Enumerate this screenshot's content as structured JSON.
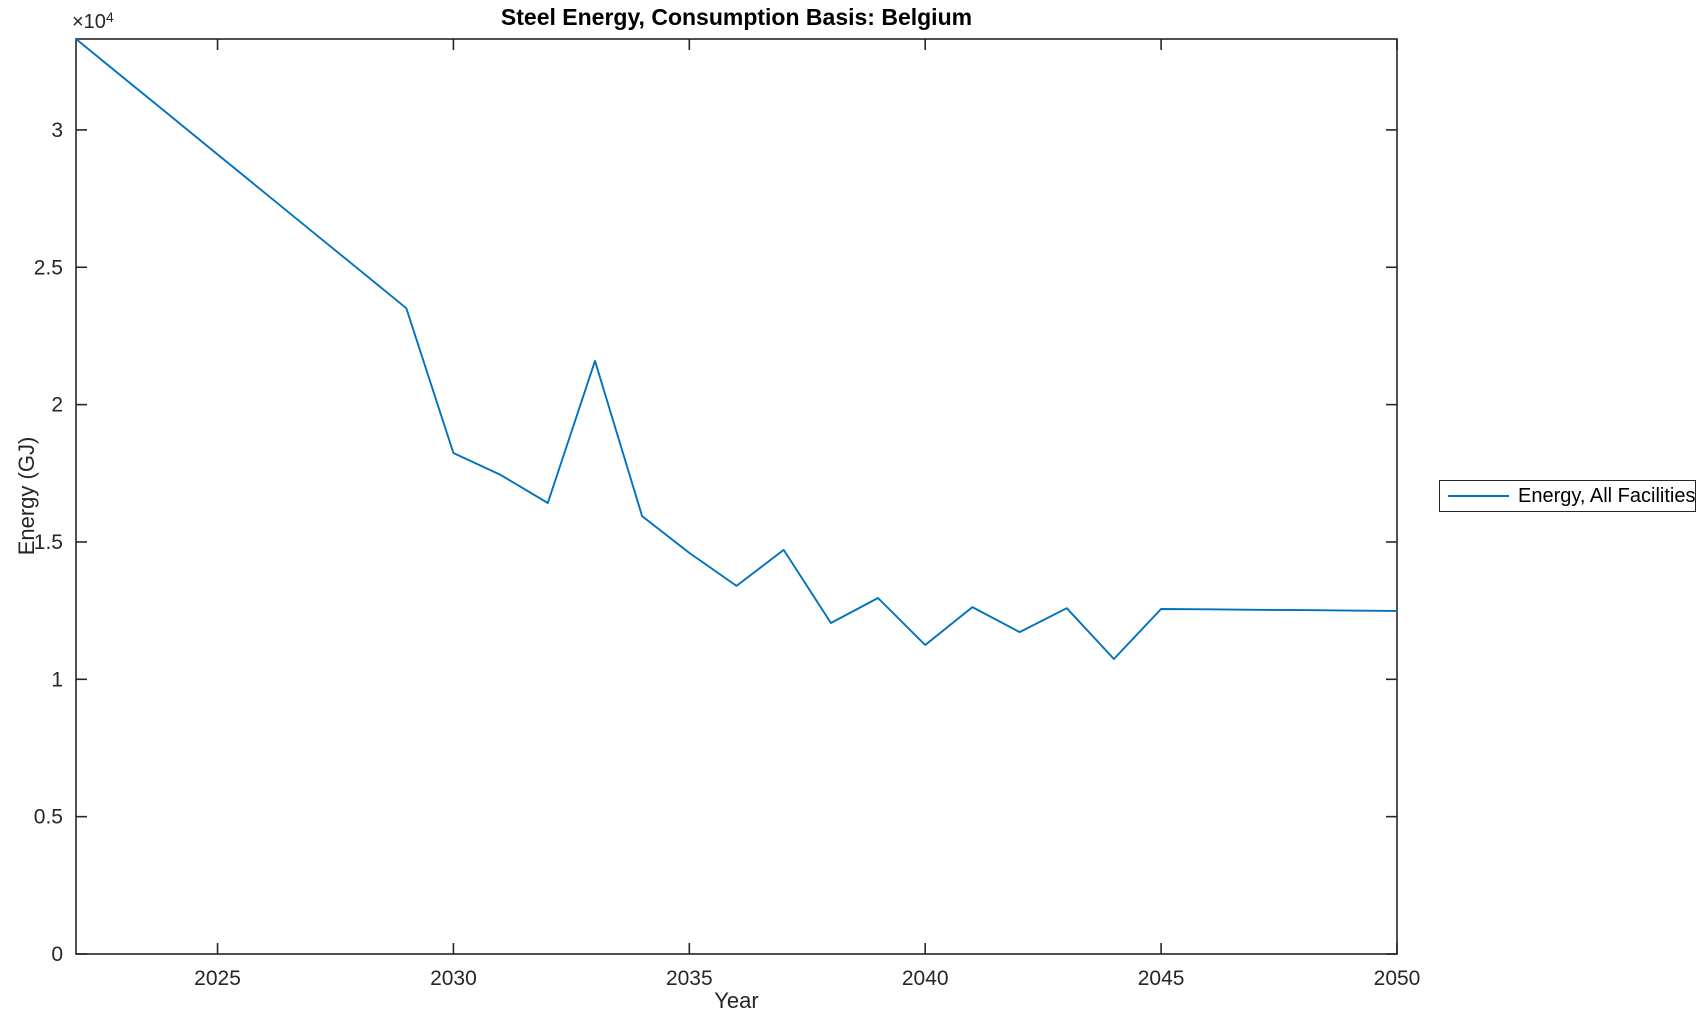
{
  "chart_data": {
    "type": "line",
    "title": "Steel Energy, Consumption Basis: Belgium",
    "xlabel": "Year",
    "ylabel": "Energy (GJ)",
    "y_axis_multiplier": {
      "base": "×10",
      "exponent": "4"
    },
    "xlim": [
      2022,
      2050
    ],
    "ylim": [
      0,
      3.331
    ],
    "x_ticks": [
      2025,
      2030,
      2035,
      2040,
      2045,
      2050
    ],
    "y_ticks": [
      0,
      0.5,
      1,
      1.5,
      2,
      2.5,
      3
    ],
    "grid": false,
    "legend": {
      "position": "right-outside",
      "entries": [
        {
          "label": "Energy, All Facilities",
          "color": "#0072BD"
        }
      ]
    },
    "colors": {
      "axis": "#262626",
      "title": "#000000",
      "background": "#ffffff"
    },
    "series": [
      {
        "name": "Energy, All Facilities",
        "color": "#0072BD",
        "x": [
          2022,
          2023,
          2024,
          2025,
          2026,
          2027,
          2028,
          2029,
          2030,
          2031,
          2032,
          2033,
          2034,
          2035,
          2036,
          2037,
          2038,
          2039,
          2040,
          2041,
          2042,
          2043,
          2044,
          2045,
          2046,
          2047,
          2048,
          2049,
          2050
        ],
        "values": [
          3.331,
          3.191,
          3.051,
          2.911,
          2.771,
          2.631,
          2.491,
          2.351,
          1.824,
          1.744,
          1.642,
          2.159,
          1.594,
          1.46,
          1.34,
          1.471,
          1.205,
          1.296,
          1.125,
          1.263,
          1.172,
          1.259,
          1.074,
          1.256,
          1.255,
          1.253,
          1.252,
          1.25,
          1.249
        ]
      }
    ]
  }
}
